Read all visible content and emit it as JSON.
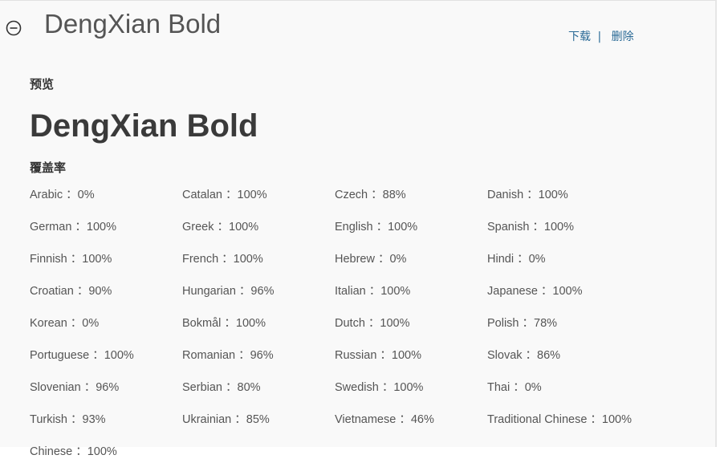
{
  "header": {
    "title": "DengXian Bold",
    "links": [
      "下载",
      "|",
      "删除"
    ]
  },
  "preview": {
    "heading": "预览",
    "sample": "DengXian Bold"
  },
  "coverage": {
    "heading": "覆盖率",
    "items": [
      "Arabic ：0%",
      "Catalan ：100%",
      "Czech ：88%",
      "Danish ：100%",
      "German ：100%",
      "Greek ：100%",
      "English ：100%",
      "Spanish ：100%",
      "Finnish ：100%",
      "French ：100%",
      "Hebrew ：0%",
      "Hindi ：0%",
      "Croatian ：90%",
      "Hungarian ：96%",
      "Italian ：100%",
      "Japanese ：100%",
      "Korean ：0%",
      "Bokmål ：100%",
      "Dutch ：100%",
      "Polish ：78%",
      "Portuguese ：100%",
      "Romanian ：96%",
      "Russian ：100%",
      "Slovak ：86%",
      "Slovenian ：96%",
      "Serbian ：80%",
      "Swedish ：100%",
      "Thai ：0%",
      "Turkish ：93%",
      "Ukrainian ：85%",
      "Vietnamese ：46%",
      "Traditional Chinese ：100%",
      "Chinese ：100%"
    ]
  }
}
